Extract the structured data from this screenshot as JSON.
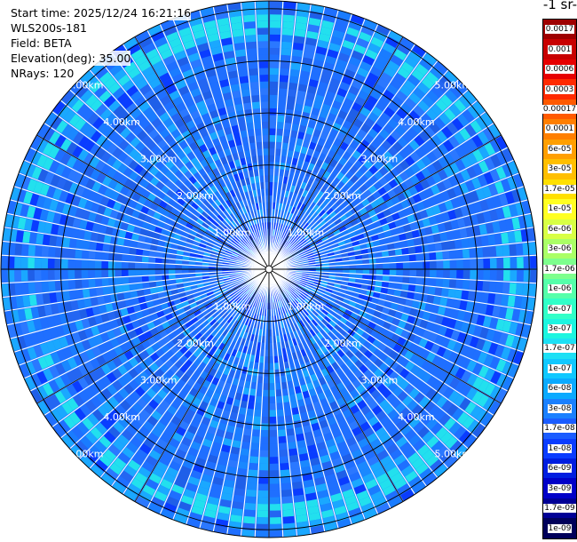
{
  "info": {
    "start_time": "Start time: 2025/12/24 16:21:16",
    "device": "WLS200s-181",
    "field": "Field: BETA",
    "elevation": "Elevation(deg): 35.00",
    "nrays": "NRays: 120"
  },
  "unit_title": "-1 sr-",
  "colors": {
    "background_ring": "#1f6fff",
    "highlight": "#22e0ee",
    "grid": "#000000",
    "gap": "#ffffff"
  },
  "chart_data": {
    "type": "ppi",
    "nrays": 120,
    "elevation_deg": 35.0,
    "range_rings_km": [
      1.0,
      2.0,
      3.0,
      4.0,
      5.0
    ],
    "ring_labels": [
      "1.00km",
      "2.00km",
      "3.00km",
      "4.00km",
      "5.00km"
    ],
    "max_range_km": 5.0,
    "colorbar": {
      "labels": [
        "0.0017",
        "0.001",
        "0.0006",
        "0.0003",
        "0.00017",
        "0.0001",
        "6e-05",
        "3e-05",
        "1.7e-05",
        "1e-05",
        "6e-06",
        "3e-06",
        "1.7e-06",
        "1e-06",
        "6e-07",
        "3e-07",
        "1.7e-07",
        "1e-07",
        "6e-08",
        "3e-08",
        "1.7e-08",
        "1e-08",
        "6e-09",
        "3e-09",
        "1.7e-09",
        "1e-09"
      ],
      "colors": [
        "#9e0000",
        "#c80000",
        "#e60000",
        "#ff2a00",
        "#ff5a00",
        "#ff7f00",
        "#ff9f00",
        "#ffbf00",
        "#ffe000",
        "#ffff22",
        "#d8ff44",
        "#aaff66",
        "#7dff8d",
        "#55ffaa",
        "#30ffc8",
        "#1cf5e0",
        "#1ce0f5",
        "#10c8ff",
        "#0aaaff",
        "#1a80ff",
        "#1a5cff",
        "#0a3cff",
        "#001ee0",
        "#0000c8",
        "#000096",
        "#00005a"
      ]
    }
  }
}
